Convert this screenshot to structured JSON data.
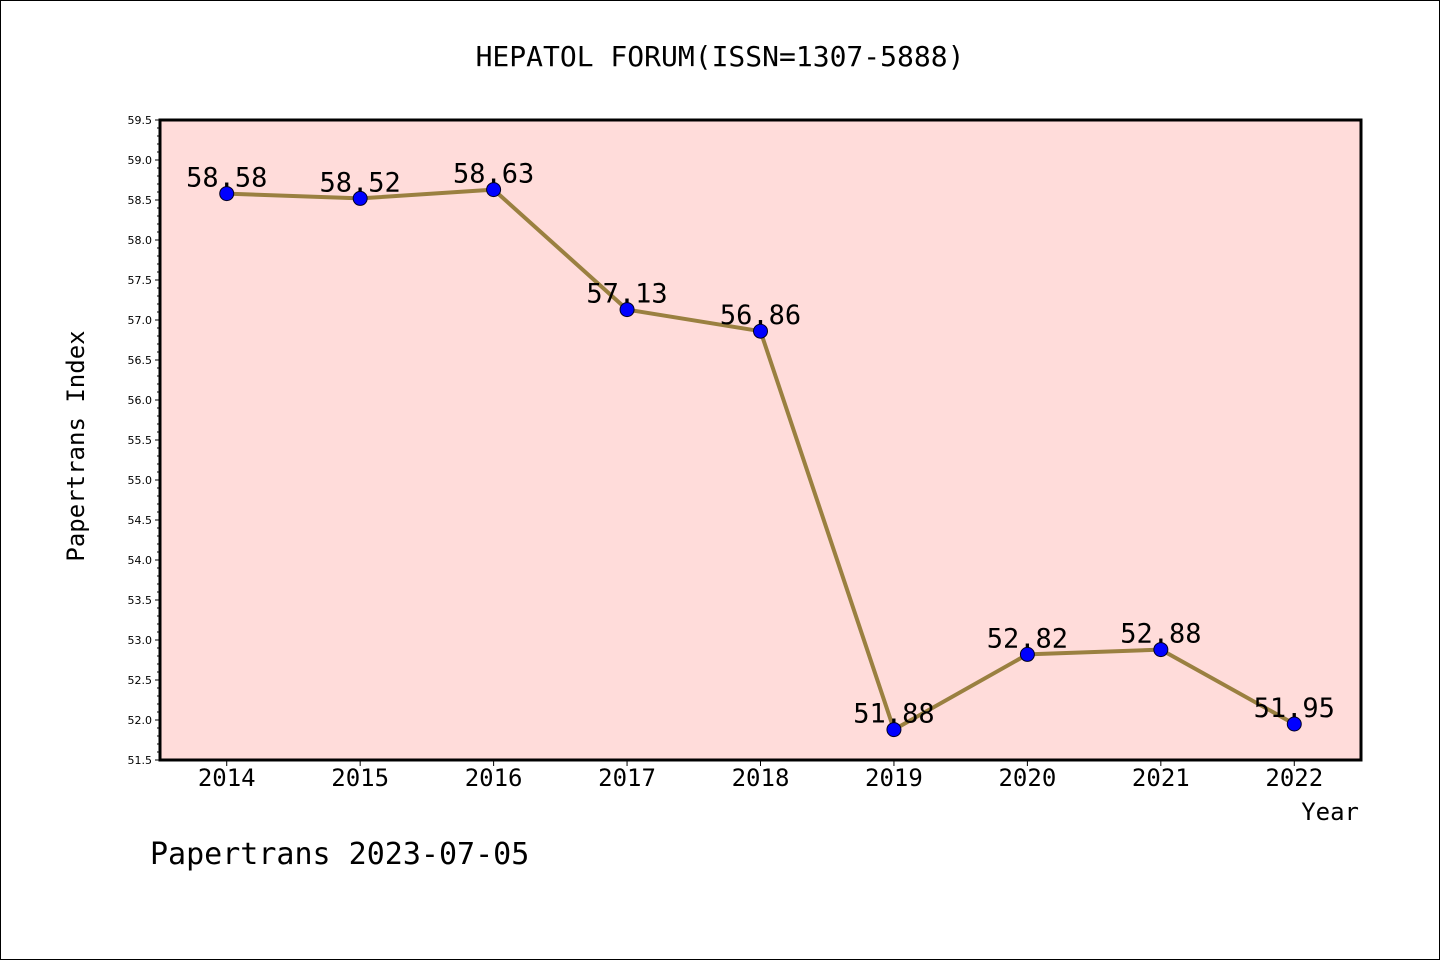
{
  "chart_data": {
    "type": "line",
    "title": "HEPATOL FORUM(ISSN=1307-5888)",
    "xlabel": "Year",
    "ylabel": "Papertrans Index",
    "categories": [
      "2014",
      "2015",
      "2016",
      "2017",
      "2018",
      "2019",
      "2020",
      "2021",
      "2022"
    ],
    "values": [
      58.58,
      58.52,
      58.63,
      57.13,
      56.86,
      51.88,
      52.82,
      52.88,
      51.95
    ],
    "value_labels": [
      "58.58",
      "58.52",
      "58.63",
      "57.13",
      "56.86",
      "51.88",
      "52.82",
      "52.88",
      "51.95"
    ],
    "ylim": [
      51.5,
      59.5
    ],
    "yticks": [
      "51.5",
      "52.0",
      "52.5",
      "53.0",
      "53.5",
      "54.0",
      "54.5",
      "55.0",
      "55.5",
      "56.0",
      "56.5",
      "57.0",
      "57.5",
      "58.0",
      "58.5",
      "59.0",
      "59.5"
    ],
    "grid": false,
    "colors": {
      "plot_bg": "#FFDCDA",
      "line": "#9A8040",
      "marker": "#0000FF"
    }
  },
  "footer": {
    "text": "Papertrans 2023-07-05"
  }
}
